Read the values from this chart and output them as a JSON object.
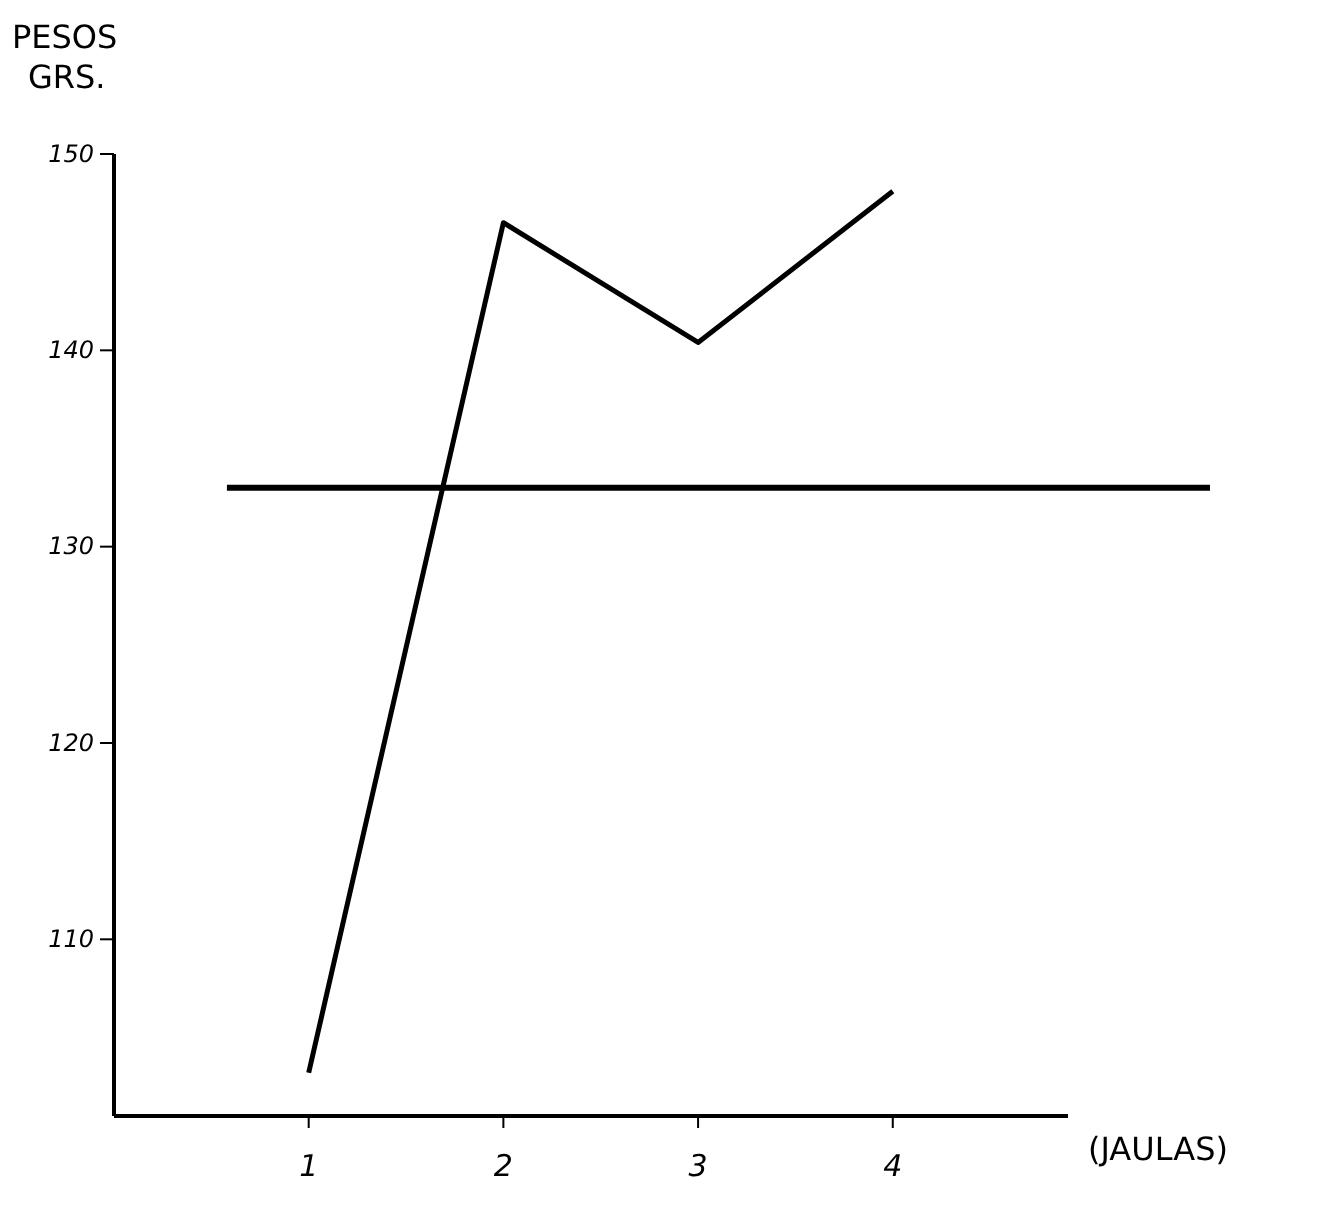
{
  "chart_data": {
    "type": "line",
    "ylabel": "PESOS\nGRS.",
    "xlabel": "(JAULAS)",
    "x": [
      1,
      2,
      3,
      4
    ],
    "values": [
      103.2,
      146.5,
      140.4,
      148.1
    ],
    "color": "#000000",
    "xlim": [
      0,
      4.9
    ],
    "xticks": [
      1,
      2,
      3,
      4
    ],
    "ylim": [
      101,
      150
    ],
    "yticks": [
      110,
      120,
      130,
      140,
      150
    ],
    "ref_lines": [
      {
        "axis": "y",
        "value": 133,
        "color": "#000000"
      }
    ],
    "grid": false,
    "marker": "none",
    "line_style": "solid"
  }
}
